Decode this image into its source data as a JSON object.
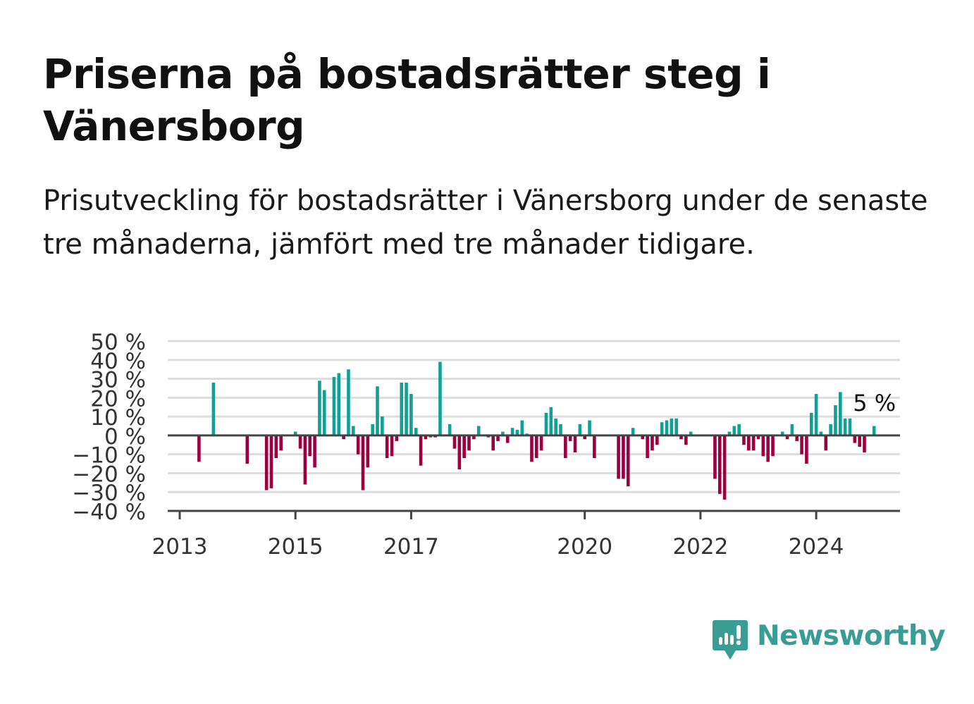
{
  "title": "Priserna på bostadsrätter steg i Vänersborg",
  "subtitle": "Prisutveckling för bostadsrätter i Vänersborg under de senaste tre månaderna, jämfört med tre månader tidigare.",
  "brand": {
    "name": "Newsworthy",
    "color": "#3a9d95",
    "icon": "newsworthy-logo-icon"
  },
  "colors": {
    "positive": "#12a096",
    "negative": "#9c0040",
    "grid": "#dddddd",
    "axis": "#444444"
  },
  "chart_data": {
    "type": "bar",
    "title": "Priserna på bostadsrätter steg i Vänersborg",
    "xlabel": "",
    "ylabel": "",
    "x_start": "2013-01",
    "ylim": [
      -40,
      50
    ],
    "yticks": [
      50,
      40,
      30,
      20,
      10,
      0,
      -10,
      -20,
      -30,
      -40
    ],
    "ytick_labels": [
      "50 %",
      "40 %",
      "30 %",
      "20 %",
      "10 %",
      "0 %",
      "−10 %",
      "−20 %",
      "−30 %",
      "−40 %"
    ],
    "xticks": [
      "2013",
      "2015",
      "2017",
      "2020",
      "2022",
      "2024"
    ],
    "grid": true,
    "annotation": {
      "text": "5 %",
      "month": "2025-01"
    },
    "values": [
      0,
      0,
      0,
      0,
      -14,
      0,
      0,
      28,
      0,
      0,
      0,
      0,
      0,
      0,
      -15,
      0,
      0,
      0,
      -29,
      -28,
      -12,
      -8,
      0,
      0,
      2,
      -7,
      -26,
      -11,
      -17,
      29,
      24,
      0,
      31,
      33,
      -2,
      35,
      5,
      -10,
      -29,
      -17,
      6,
      26,
      10,
      -12,
      -11,
      -3,
      28,
      28,
      22,
      4,
      -16,
      -2,
      -1,
      -1,
      39,
      0,
      6,
      -7,
      -18,
      -12,
      -8,
      -2,
      5,
      0,
      -1,
      -8,
      -3,
      2,
      -4,
      4,
      3,
      8,
      1,
      -14,
      -12,
      -8,
      12,
      15,
      9,
      6,
      -12,
      -3,
      -9,
      6,
      -2,
      8,
      -12,
      0,
      0,
      0,
      0,
      -23,
      -23,
      -27,
      4,
      0,
      -2,
      -12,
      -8,
      -5,
      7,
      8,
      9,
      9,
      -2,
      -5,
      2,
      0,
      0,
      0,
      0,
      -23,
      -31,
      -34,
      2,
      5,
      6,
      -5,
      -8,
      -8,
      -2,
      -11,
      -14,
      -11,
      0,
      2,
      -2,
      6,
      -3,
      -10,
      -15,
      12,
      22,
      2,
      -8,
      6,
      16,
      23,
      9,
      9,
      -4,
      -6,
      -9,
      0,
      5
    ]
  }
}
